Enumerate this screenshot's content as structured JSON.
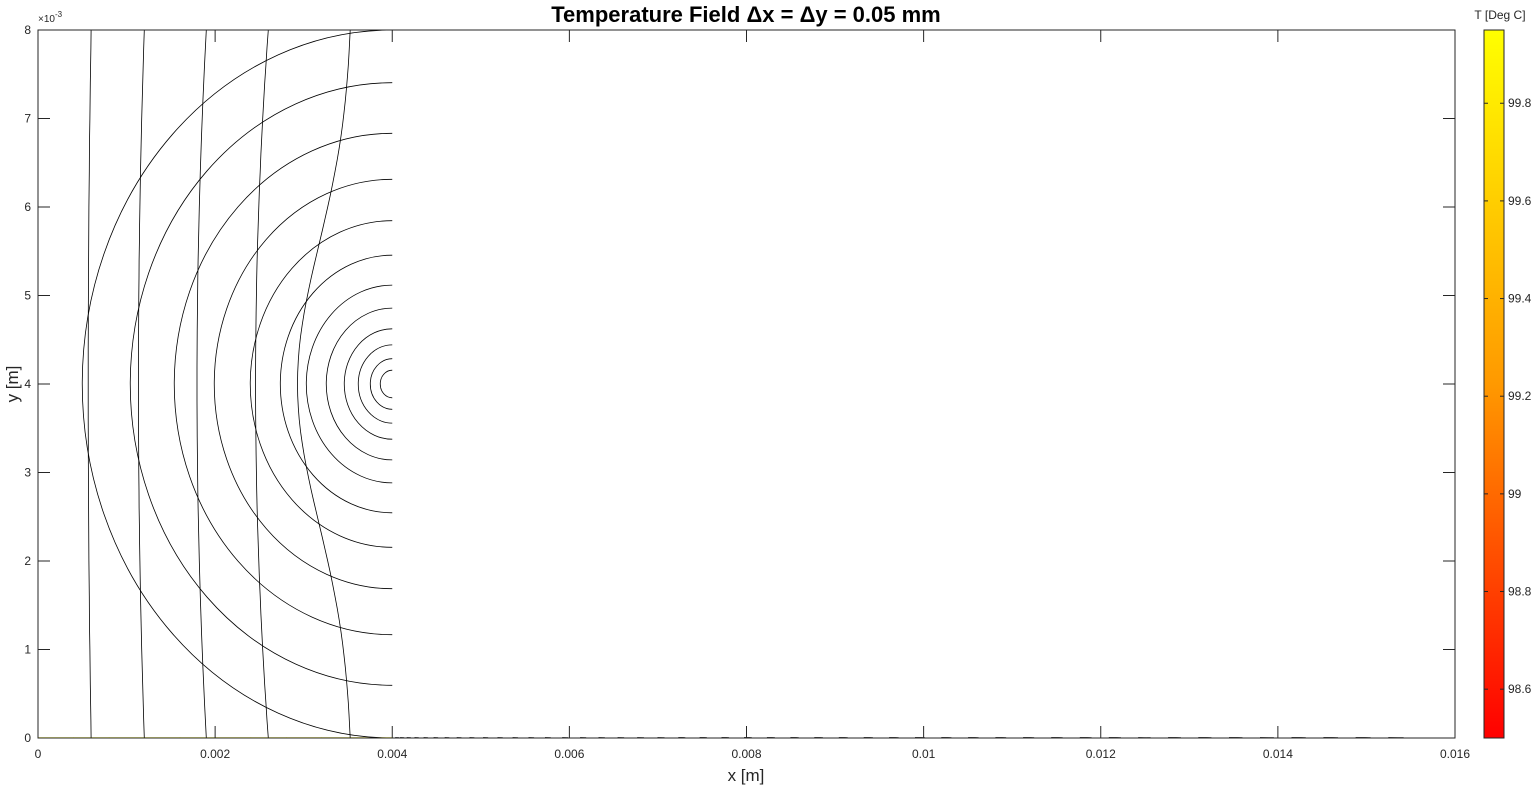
{
  "chart_data": {
    "type": "heatmap",
    "title": "Temperature Field Δx = Δy = 0.05 mm",
    "xlabel": "x [m]",
    "ylabel": "y [m]",
    "xlim": [
      0,
      0.016
    ],
    "ylim": [
      0,
      0.008
    ],
    "x_ticks": [
      0,
      0.002,
      0.004,
      0.006,
      0.008,
      0.01,
      0.012,
      0.014,
      0.016
    ],
    "x_tick_labels": [
      "0",
      "0.002",
      "0.004",
      "0.006",
      "0.008",
      "0.01",
      "0.012",
      "0.014",
      "0.016"
    ],
    "y_ticks": [
      0,
      1,
      2,
      3,
      4,
      5,
      6,
      7,
      8
    ],
    "y_tick_labels": [
      "0",
      "1",
      "2",
      "3",
      "4",
      "5",
      "6",
      "7",
      "8"
    ],
    "y_exponent_label": "×10",
    "y_exponent_power": "-3",
    "domain": {
      "base": {
        "x": [
          0,
          0.004
        ],
        "y": [
          0,
          0.008
        ]
      },
      "fin": {
        "x": [
          0.004,
          0.016
        ],
        "y": [
          0.003,
          0.005
        ]
      }
    },
    "temperature_range": [
      98.5,
      99.95
    ],
    "colormap": {
      "low": "#ff0000",
      "mid": "#ff9900",
      "high": "#ffff00"
    },
    "colorbar": {
      "label": "T [Deg C]",
      "ticks": [
        98.6,
        98.8,
        99,
        99.2,
        99.4,
        99.6,
        99.8
      ],
      "tick_labels": [
        "98.6",
        "98.8",
        "99",
        "99.2",
        "99.4",
        "99.6",
        "99.8"
      ]
    },
    "grid": false,
    "contour_color": "#000000"
  }
}
